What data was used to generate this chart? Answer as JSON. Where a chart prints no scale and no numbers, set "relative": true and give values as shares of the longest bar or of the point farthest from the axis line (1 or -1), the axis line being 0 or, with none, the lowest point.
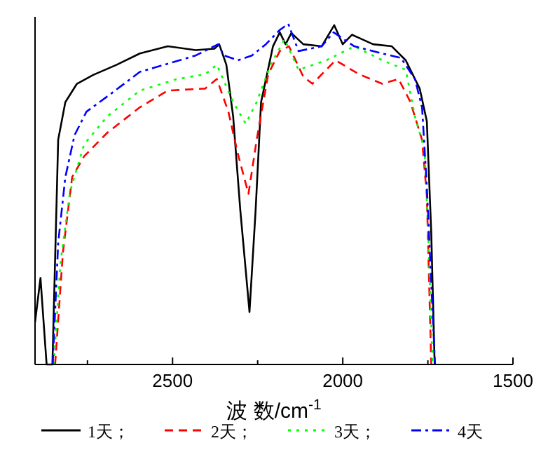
{
  "chart_data": {
    "type": "line",
    "relative": true,
    "xlabel": "波 数/cm$^{-1}$",
    "xlim": [
      2904,
      1500
    ],
    "xticks": [
      {
        "value": 2750,
        "label": null
      },
      2500,
      {
        "value": 2250,
        "label": null
      },
      2000,
      {
        "value": 1750,
        "label": null
      },
      1500
    ],
    "tick_labels": "x",
    "legend": "bottom",
    "grid": false,
    "series": [
      {
        "name": "1天；",
        "color": "#000000",
        "line_style": "solid",
        "x": [
          2904,
          2888,
          2870,
          2853,
          2836,
          2815,
          2781,
          2733,
          2664,
          2596,
          2514,
          2432,
          2377,
          2363,
          2342,
          2322,
          2301,
          2274,
          2256,
          2240,
          2205,
          2185,
          2168,
          2151,
          2116,
          2062,
          2025,
          2000,
          1973,
          1911,
          1856,
          1815,
          1774,
          1753,
          1740,
          1730
        ],
        "values": [
          0.124,
          0.254,
          0,
          0,
          0.66,
          0.77,
          0.824,
          0.85,
          0.88,
          0.913,
          0.934,
          0.923,
          0.927,
          0.94,
          0.88,
          0.728,
          0.453,
          0.154,
          0.453,
          0.77,
          0.934,
          0.975,
          0.94,
          0.973,
          0.94,
          0.934,
          0.996,
          0.94,
          0.968,
          0.94,
          0.934,
          0.893,
          0.81,
          0.714,
          0.385,
          0
        ]
      },
      {
        "name": "2天；",
        "color": "#ff0000",
        "line_style": "dashed",
        "x": [
          2845,
          2822,
          2795,
          2760,
          2692,
          2596,
          2514,
          2404,
          2370,
          2336,
          2308,
          2277,
          2253,
          2219,
          2185,
          2158,
          2116,
          2089,
          2021,
          1952,
          1884,
          1836,
          1801,
          1767,
          1753,
          1740
        ],
        "values": [
          0,
          0.33,
          0.55,
          0.611,
          0.68,
          0.755,
          0.804,
          0.81,
          0.838,
          0.742,
          0.618,
          0.501,
          0.659,
          0.852,
          0.92,
          0.934,
          0.845,
          0.824,
          0.893,
          0.852,
          0.824,
          0.838,
          0.77,
          0.659,
          0.495,
          0
        ]
      },
      {
        "name": "3天；",
        "color": "#00ff00",
        "line_style": "dotted",
        "x": [
          2849,
          2829,
          2801,
          2760,
          2692,
          2596,
          2486,
          2404,
          2370,
          2322,
          2285,
          2253,
          2212,
          2171,
          2130,
          2048,
          1966,
          1884,
          1815,
          1788,
          1760,
          1749,
          1736
        ],
        "values": [
          0,
          0.302,
          0.508,
          0.646,
          0.728,
          0.804,
          0.838,
          0.852,
          0.88,
          0.77,
          0.707,
          0.77,
          0.88,
          0.955,
          0.865,
          0.893,
          0.934,
          0.893,
          0.865,
          0.728,
          0.632,
          0.385,
          0
        ]
      },
      {
        "name": "4天",
        "color": "#0000ff",
        "line_style": "dashdot",
        "x": [
          2852,
          2836,
          2815,
          2788,
          2753,
          2678,
          2596,
          2527,
          2432,
          2366,
          2349,
          2308,
          2267,
          2226,
          2185,
          2160,
          2130,
          2062,
          2027,
          1966,
          1884,
          1829,
          1788,
          1767,
          1753,
          1729
        ],
        "values": [
          0,
          0.357,
          0.55,
          0.673,
          0.742,
          0.797,
          0.859,
          0.879,
          0.907,
          0.94,
          0.907,
          0.893,
          0.907,
          0.94,
          0.982,
          1.0,
          0.92,
          0.934,
          0.975,
          0.934,
          0.913,
          0.9,
          0.838,
          0.755,
          0.522,
          0
        ]
      }
    ]
  }
}
